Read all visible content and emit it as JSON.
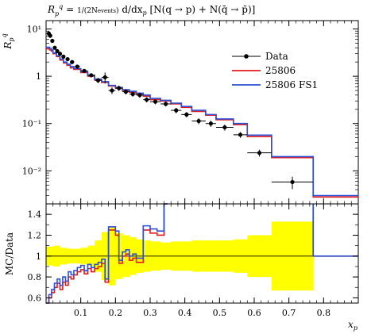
{
  "chart_data": [
    {
      "type": "line",
      "title": "R_p^q = 1/(2N_events) d/dx_p [N(q→p) + N(q̄→p̄)]",
      "ylabel": "R_p^q",
      "xlabel": "",
      "yscale": "log",
      "xlim": [
        0.0,
        0.9
      ],
      "ylim": [
        0.002,
        15
      ],
      "yticks": [
        {
          "value": 0.01,
          "label": "10⁻²"
        },
        {
          "value": 0.1,
          "label": "10⁻¹"
        },
        {
          "value": 1,
          "label": "1"
        },
        {
          "value": 10,
          "label": "10¹"
        }
      ],
      "legend_position": "top-right",
      "data": {
        "name": "Data",
        "color": "#000000",
        "points": [
          {
            "x": 0.008,
            "y": 8.0,
            "xerr": 0.004,
            "yerr": 0.8
          },
          {
            "x": 0.012,
            "y": 7.2,
            "xerr": 0.004,
            "yerr": 0.7
          },
          {
            "x": 0.018,
            "y": 5.6,
            "xerr": 0.004,
            "yerr": 0.5
          },
          {
            "x": 0.025,
            "y": 4.0,
            "xerr": 0.004,
            "yerr": 0.35
          },
          {
            "x": 0.032,
            "y": 3.4,
            "xerr": 0.004,
            "yerr": 0.3
          },
          {
            "x": 0.04,
            "y": 3.0,
            "xerr": 0.004,
            "yerr": 0.25
          },
          {
            "x": 0.05,
            "y": 2.6,
            "xerr": 0.005,
            "yerr": 0.2
          },
          {
            "x": 0.062,
            "y": 2.3,
            "xerr": 0.006,
            "yerr": 0.2
          },
          {
            "x": 0.075,
            "y": 2.0,
            "xerr": 0.006,
            "yerr": 0.2
          },
          {
            "x": 0.09,
            "y": 1.6,
            "xerr": 0.008,
            "yerr": 0.15
          },
          {
            "x": 0.11,
            "y": 1.3,
            "xerr": 0.01,
            "yerr": 0.12
          },
          {
            "x": 0.13,
            "y": 1.05,
            "xerr": 0.01,
            "yerr": 0.1
          },
          {
            "x": 0.15,
            "y": 0.82,
            "xerr": 0.01,
            "yerr": 0.1
          },
          {
            "x": 0.17,
            "y": 0.95,
            "xerr": 0.01,
            "yerr": 0.25
          },
          {
            "x": 0.19,
            "y": 0.5,
            "xerr": 0.01,
            "yerr": 0.08
          },
          {
            "x": 0.21,
            "y": 0.56,
            "xerr": 0.01,
            "yerr": 0.07
          },
          {
            "x": 0.23,
            "y": 0.47,
            "xerr": 0.01,
            "yerr": 0.06
          },
          {
            "x": 0.25,
            "y": 0.42,
            "xerr": 0.01,
            "yerr": 0.05
          },
          {
            "x": 0.27,
            "y": 0.4,
            "xerr": 0.01,
            "yerr": 0.05
          },
          {
            "x": 0.29,
            "y": 0.32,
            "xerr": 0.01,
            "yerr": 0.04
          },
          {
            "x": 0.315,
            "y": 0.29,
            "xerr": 0.015,
            "yerr": 0.035
          },
          {
            "x": 0.345,
            "y": 0.26,
            "xerr": 0.015,
            "yerr": 0.03
          },
          {
            "x": 0.375,
            "y": 0.19,
            "xerr": 0.015,
            "yerr": 0.025
          },
          {
            "x": 0.405,
            "y": 0.155,
            "xerr": 0.015,
            "yerr": 0.02
          },
          {
            "x": 0.44,
            "y": 0.113,
            "xerr": 0.02,
            "yerr": 0.016
          },
          {
            "x": 0.475,
            "y": 0.1,
            "xerr": 0.015,
            "yerr": 0.015
          },
          {
            "x": 0.515,
            "y": 0.083,
            "xerr": 0.025,
            "yerr": 0.012
          },
          {
            "x": 0.56,
            "y": 0.058,
            "xerr": 0.02,
            "yerr": 0.008
          },
          {
            "x": 0.615,
            "y": 0.024,
            "xerr": 0.035,
            "yerr": 0.004
          },
          {
            "x": 0.71,
            "y": 0.0058,
            "xerr": 0.06,
            "yerr": 0.0017
          }
        ]
      },
      "series": [
        {
          "name": "25806",
          "color": "#e41a1c",
          "edges": [
            0.0,
            0.01,
            0.015,
            0.02,
            0.03,
            0.04,
            0.05,
            0.06,
            0.07,
            0.08,
            0.1,
            0.12,
            0.14,
            0.16,
            0.18,
            0.2,
            0.22,
            0.24,
            0.26,
            0.28,
            0.3,
            0.33,
            0.36,
            0.39,
            0.42,
            0.46,
            0.49,
            0.54,
            0.58,
            0.65,
            0.77,
            0.9
          ],
          "values": [
            3.8,
            3.6,
            3.4,
            3.0,
            2.6,
            2.2,
            1.9,
            1.7,
            1.5,
            1.4,
            1.2,
            1.0,
            0.84,
            0.74,
            0.62,
            0.56,
            0.5,
            0.46,
            0.42,
            0.38,
            0.32,
            0.3,
            0.26,
            0.22,
            0.18,
            0.15,
            0.12,
            0.095,
            0.053,
            0.019,
            0.0028
          ]
        },
        {
          "name": "25806 FS1",
          "color": "#2b4fd6",
          "edges": [
            0.0,
            0.01,
            0.015,
            0.02,
            0.03,
            0.04,
            0.05,
            0.06,
            0.07,
            0.08,
            0.1,
            0.12,
            0.14,
            0.16,
            0.18,
            0.2,
            0.22,
            0.24,
            0.26,
            0.28,
            0.3,
            0.33,
            0.36,
            0.39,
            0.42,
            0.46,
            0.49,
            0.54,
            0.58,
            0.65,
            0.77,
            0.9
          ],
          "values": [
            4.1,
            3.9,
            3.6,
            3.1,
            2.7,
            2.3,
            2.0,
            1.8,
            1.6,
            1.45,
            1.25,
            1.05,
            0.87,
            0.77,
            0.64,
            0.58,
            0.52,
            0.48,
            0.44,
            0.4,
            0.34,
            0.31,
            0.27,
            0.23,
            0.19,
            0.155,
            0.125,
            0.1,
            0.057,
            0.02,
            0.003
          ]
        }
      ]
    },
    {
      "type": "line",
      "title": "",
      "ylabel": "MC/Data",
      "xlabel": "x_p",
      "xlim": [
        0.0,
        0.9
      ],
      "ylim": [
        0.55,
        1.5
      ],
      "xticks": [
        0.1,
        0.2,
        0.3,
        0.4,
        0.5,
        0.6,
        0.7,
        0.8
      ],
      "yticks": [
        0.6,
        0.8,
        1,
        1.2,
        1.4
      ],
      "reference_line": 1.0,
      "uncertainty_band": {
        "color": "#ffff00",
        "edges": [
          0.0,
          0.02,
          0.04,
          0.06,
          0.08,
          0.1,
          0.12,
          0.14,
          0.16,
          0.18,
          0.2,
          0.22,
          0.24,
          0.26,
          0.28,
          0.3,
          0.33,
          0.36,
          0.39,
          0.42,
          0.46,
          0.49,
          0.54,
          0.58,
          0.65,
          0.77
        ],
        "lower": [
          0.91,
          0.9,
          0.92,
          0.93,
          0.93,
          0.92,
          0.9,
          0.85,
          0.77,
          0.72,
          0.78,
          0.8,
          0.82,
          0.84,
          0.85,
          0.86,
          0.87,
          0.86,
          0.86,
          0.85,
          0.85,
          0.85,
          0.84,
          0.8,
          0.67
        ],
        "upper": [
          1.09,
          1.1,
          1.08,
          1.07,
          1.07,
          1.08,
          1.1,
          1.15,
          1.23,
          1.28,
          1.22,
          1.2,
          1.18,
          1.16,
          1.15,
          1.14,
          1.13,
          1.14,
          1.14,
          1.15,
          1.15,
          1.15,
          1.16,
          1.2,
          1.33
        ]
      },
      "series": [
        {
          "name": "25806",
          "color": "#e41a1c",
          "edges": [
            0.0,
            0.008,
            0.016,
            0.024,
            0.032,
            0.04,
            0.048,
            0.056,
            0.064,
            0.072,
            0.08,
            0.09,
            0.1,
            0.11,
            0.12,
            0.13,
            0.14,
            0.15,
            0.16,
            0.17,
            0.18,
            0.2,
            0.21,
            0.22,
            0.23,
            0.24,
            0.25,
            0.26,
            0.28,
            0.3,
            0.32,
            0.34,
            0.35
          ],
          "values": [
            0.5,
            0.6,
            0.65,
            0.7,
            0.74,
            0.68,
            0.75,
            0.72,
            0.8,
            0.78,
            0.82,
            0.85,
            0.87,
            0.83,
            0.88,
            0.85,
            0.88,
            0.9,
            0.93,
            0.75,
            1.25,
            1.2,
            0.93,
            1.0,
            1.02,
            0.96,
            0.98,
            0.94,
            1.25,
            1.22,
            1.2,
            1.5
          ]
        },
        {
          "name": "25806 FS1",
          "color": "#2b4fd6",
          "edges": [
            0.0,
            0.008,
            0.016,
            0.024,
            0.032,
            0.04,
            0.048,
            0.056,
            0.064,
            0.072,
            0.08,
            0.09,
            0.1,
            0.11,
            0.12,
            0.13,
            0.14,
            0.15,
            0.16,
            0.17,
            0.18,
            0.2,
            0.21,
            0.22,
            0.23,
            0.24,
            0.25,
            0.26,
            0.28,
            0.3,
            0.32,
            0.34,
            0.35
          ],
          "values": [
            0.52,
            0.63,
            0.68,
            0.74,
            0.78,
            0.72,
            0.8,
            0.76,
            0.85,
            0.82,
            0.86,
            0.89,
            0.91,
            0.86,
            0.92,
            0.89,
            0.92,
            0.94,
            0.97,
            0.78,
            1.28,
            1.24,
            0.96,
            1.04,
            1.06,
            1.0,
            1.02,
            0.98,
            1.29,
            1.26,
            1.24,
            1.5
          ]
        }
      ],
      "overflow_segments": [
        {
          "series": "25806",
          "edges": [
            0.77,
            0.9
          ],
          "value": 1.0
        },
        {
          "series": "25806 FS1",
          "edges": [
            0.77,
            0.9
          ],
          "value": 1.0
        }
      ]
    }
  ],
  "legend": {
    "items": [
      {
        "name": "Data",
        "color": "#000000",
        "style": "marker"
      },
      {
        "name": "25806",
        "color": "#e41a1c",
        "style": "line"
      },
      {
        "name": "25806 FS1",
        "color": "#2b4fd6",
        "style": "line"
      }
    ]
  }
}
